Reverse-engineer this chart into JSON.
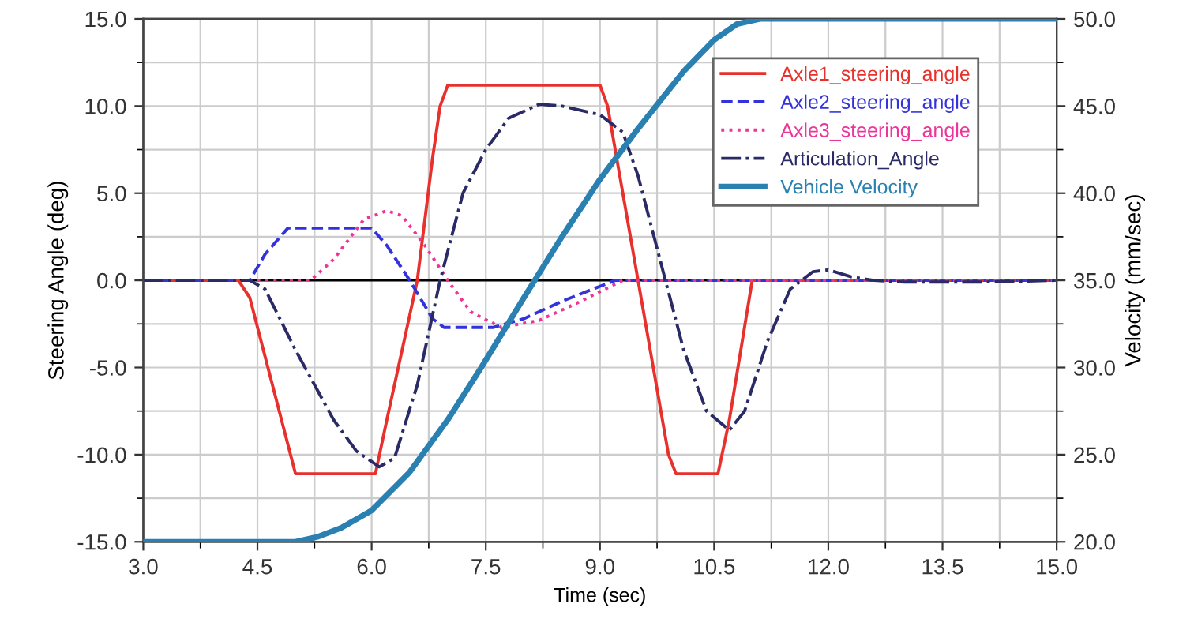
{
  "chart_data": {
    "type": "line",
    "xlabel": "Time (sec)",
    "ylabel": "Steering Angle (deg)",
    "y2label": "Velocity (mm/sec)",
    "xlim": [
      3,
      15
    ],
    "xticks": [
      {
        "value": 3,
        "label": "3.0"
      },
      {
        "value": 4.5,
        "label": "4.5"
      },
      {
        "value": 6,
        "label": "6.0"
      },
      {
        "value": 7.5,
        "label": "7.5"
      },
      {
        "value": 9,
        "label": "9.0"
      },
      {
        "value": 10.5,
        "label": "10.5"
      },
      {
        "value": 12,
        "label": "12.0"
      },
      {
        "value": 13.5,
        "label": "13.5"
      },
      {
        "value": 15,
        "label": "15.0"
      }
    ],
    "ylim": [
      -15,
      15
    ],
    "yticks": [
      {
        "value": -15,
        "label": "-15.0"
      },
      {
        "value": -10,
        "label": "-10.0"
      },
      {
        "value": -5,
        "label": "-5.0"
      },
      {
        "value": 0,
        "label": "0.0"
      },
      {
        "value": 5,
        "label": "5.0"
      },
      {
        "value": 10,
        "label": "10.0"
      },
      {
        "value": 15,
        "label": "15.0"
      }
    ],
    "y2lim": [
      20,
      50
    ],
    "y2ticks": [
      {
        "value": 20,
        "label": "20.0"
      },
      {
        "value": 25,
        "label": "25.0"
      },
      {
        "value": 30,
        "label": "30.0"
      },
      {
        "value": 35,
        "label": "35.0"
      },
      {
        "value": 40,
        "label": "40.0"
      },
      {
        "value": 45,
        "label": "45.0"
      },
      {
        "value": 50,
        "label": "50.0"
      }
    ],
    "grid": true,
    "legend": "top right",
    "ref_lines": [
      {
        "axis": "y",
        "value": 0,
        "label": null,
        "color": "#000000"
      }
    ],
    "series": [
      {
        "name": "Axle1_steering_angle",
        "color": "#e8302c",
        "line_style": "solid",
        "x": [
          3,
          4.25,
          4.4,
          5.0,
          6.05,
          6.2,
          6.6,
          6.8,
          6.9,
          7.0,
          9.0,
          9.1,
          9.5,
          9.9,
          10.0,
          10.55,
          10.7,
          11.0,
          15
        ],
        "values": [
          0,
          0,
          -1,
          -11.1,
          -11.1,
          -8,
          0,
          7,
          10,
          11.2,
          11.2,
          10,
          0,
          -10,
          -11.1,
          -11.1,
          -8,
          0,
          0
        ]
      },
      {
        "name": "Axle2_steering_angle",
        "color": "#3333dd",
        "line_style": "dashed",
        "x": [
          3,
          4.4,
          4.6,
          4.9,
          6.0,
          6.2,
          6.5,
          6.8,
          6.95,
          7.6,
          8.0,
          8.5,
          9.2,
          15
        ],
        "values": [
          0,
          0,
          1.5,
          3,
          3,
          2,
          0,
          -2.2,
          -2.7,
          -2.7,
          -2.2,
          -1.2,
          0,
          0
        ]
      },
      {
        "name": "Axle3_steering_angle",
        "color": "#ee3399",
        "line_style": "dotted",
        "x": [
          3,
          5.2,
          5.5,
          5.9,
          6.2,
          6.4,
          6.7,
          7.0,
          7.3,
          7.7,
          8.2,
          8.7,
          9.3,
          15
        ],
        "values": [
          0,
          0,
          1.2,
          3.5,
          4,
          3.7,
          2,
          0,
          -1.8,
          -2.7,
          -2.3,
          -1.3,
          0,
          0
        ]
      },
      {
        "name": "Articulation_Angle",
        "color": "#2a2a66",
        "line_style": "dashdot",
        "x": [
          3,
          4.4,
          4.6,
          5.0,
          5.5,
          5.8,
          6.1,
          6.3,
          6.6,
          6.9,
          7.2,
          7.5,
          7.8,
          8.2,
          8.5,
          9.0,
          9.3,
          9.5,
          9.8,
          10.1,
          10.4,
          10.7,
          10.9,
          11.2,
          11.5,
          11.8,
          12.0,
          12.3,
          12.6,
          13,
          14,
          15
        ],
        "values": [
          0,
          0,
          -0.5,
          -4,
          -8,
          -9.8,
          -10.7,
          -10.2,
          -6,
          0,
          5,
          7.5,
          9.3,
          10.1,
          10,
          9.5,
          8.5,
          6,
          1,
          -4,
          -7.5,
          -8.6,
          -7.5,
          -3.5,
          -0.5,
          0.5,
          0.6,
          0.2,
          0,
          -0.1,
          -0.1,
          0
        ]
      },
      {
        "name": "Vehicle Velocity",
        "color": "#2a80b0",
        "line_style": "solid",
        "axis": "y2",
        "x": [
          3,
          5.0,
          5.3,
          5.6,
          6.0,
          6.5,
          7.0,
          7.44,
          8.0,
          8.5,
          9.0,
          9.5,
          10.1,
          10.5,
          10.8,
          11.1,
          15
        ],
        "values": [
          20,
          20,
          20.3,
          20.8,
          21.8,
          24,
          27,
          30,
          34,
          37.5,
          40.8,
          43.7,
          47,
          48.8,
          49.7,
          50,
          50
        ]
      }
    ]
  }
}
